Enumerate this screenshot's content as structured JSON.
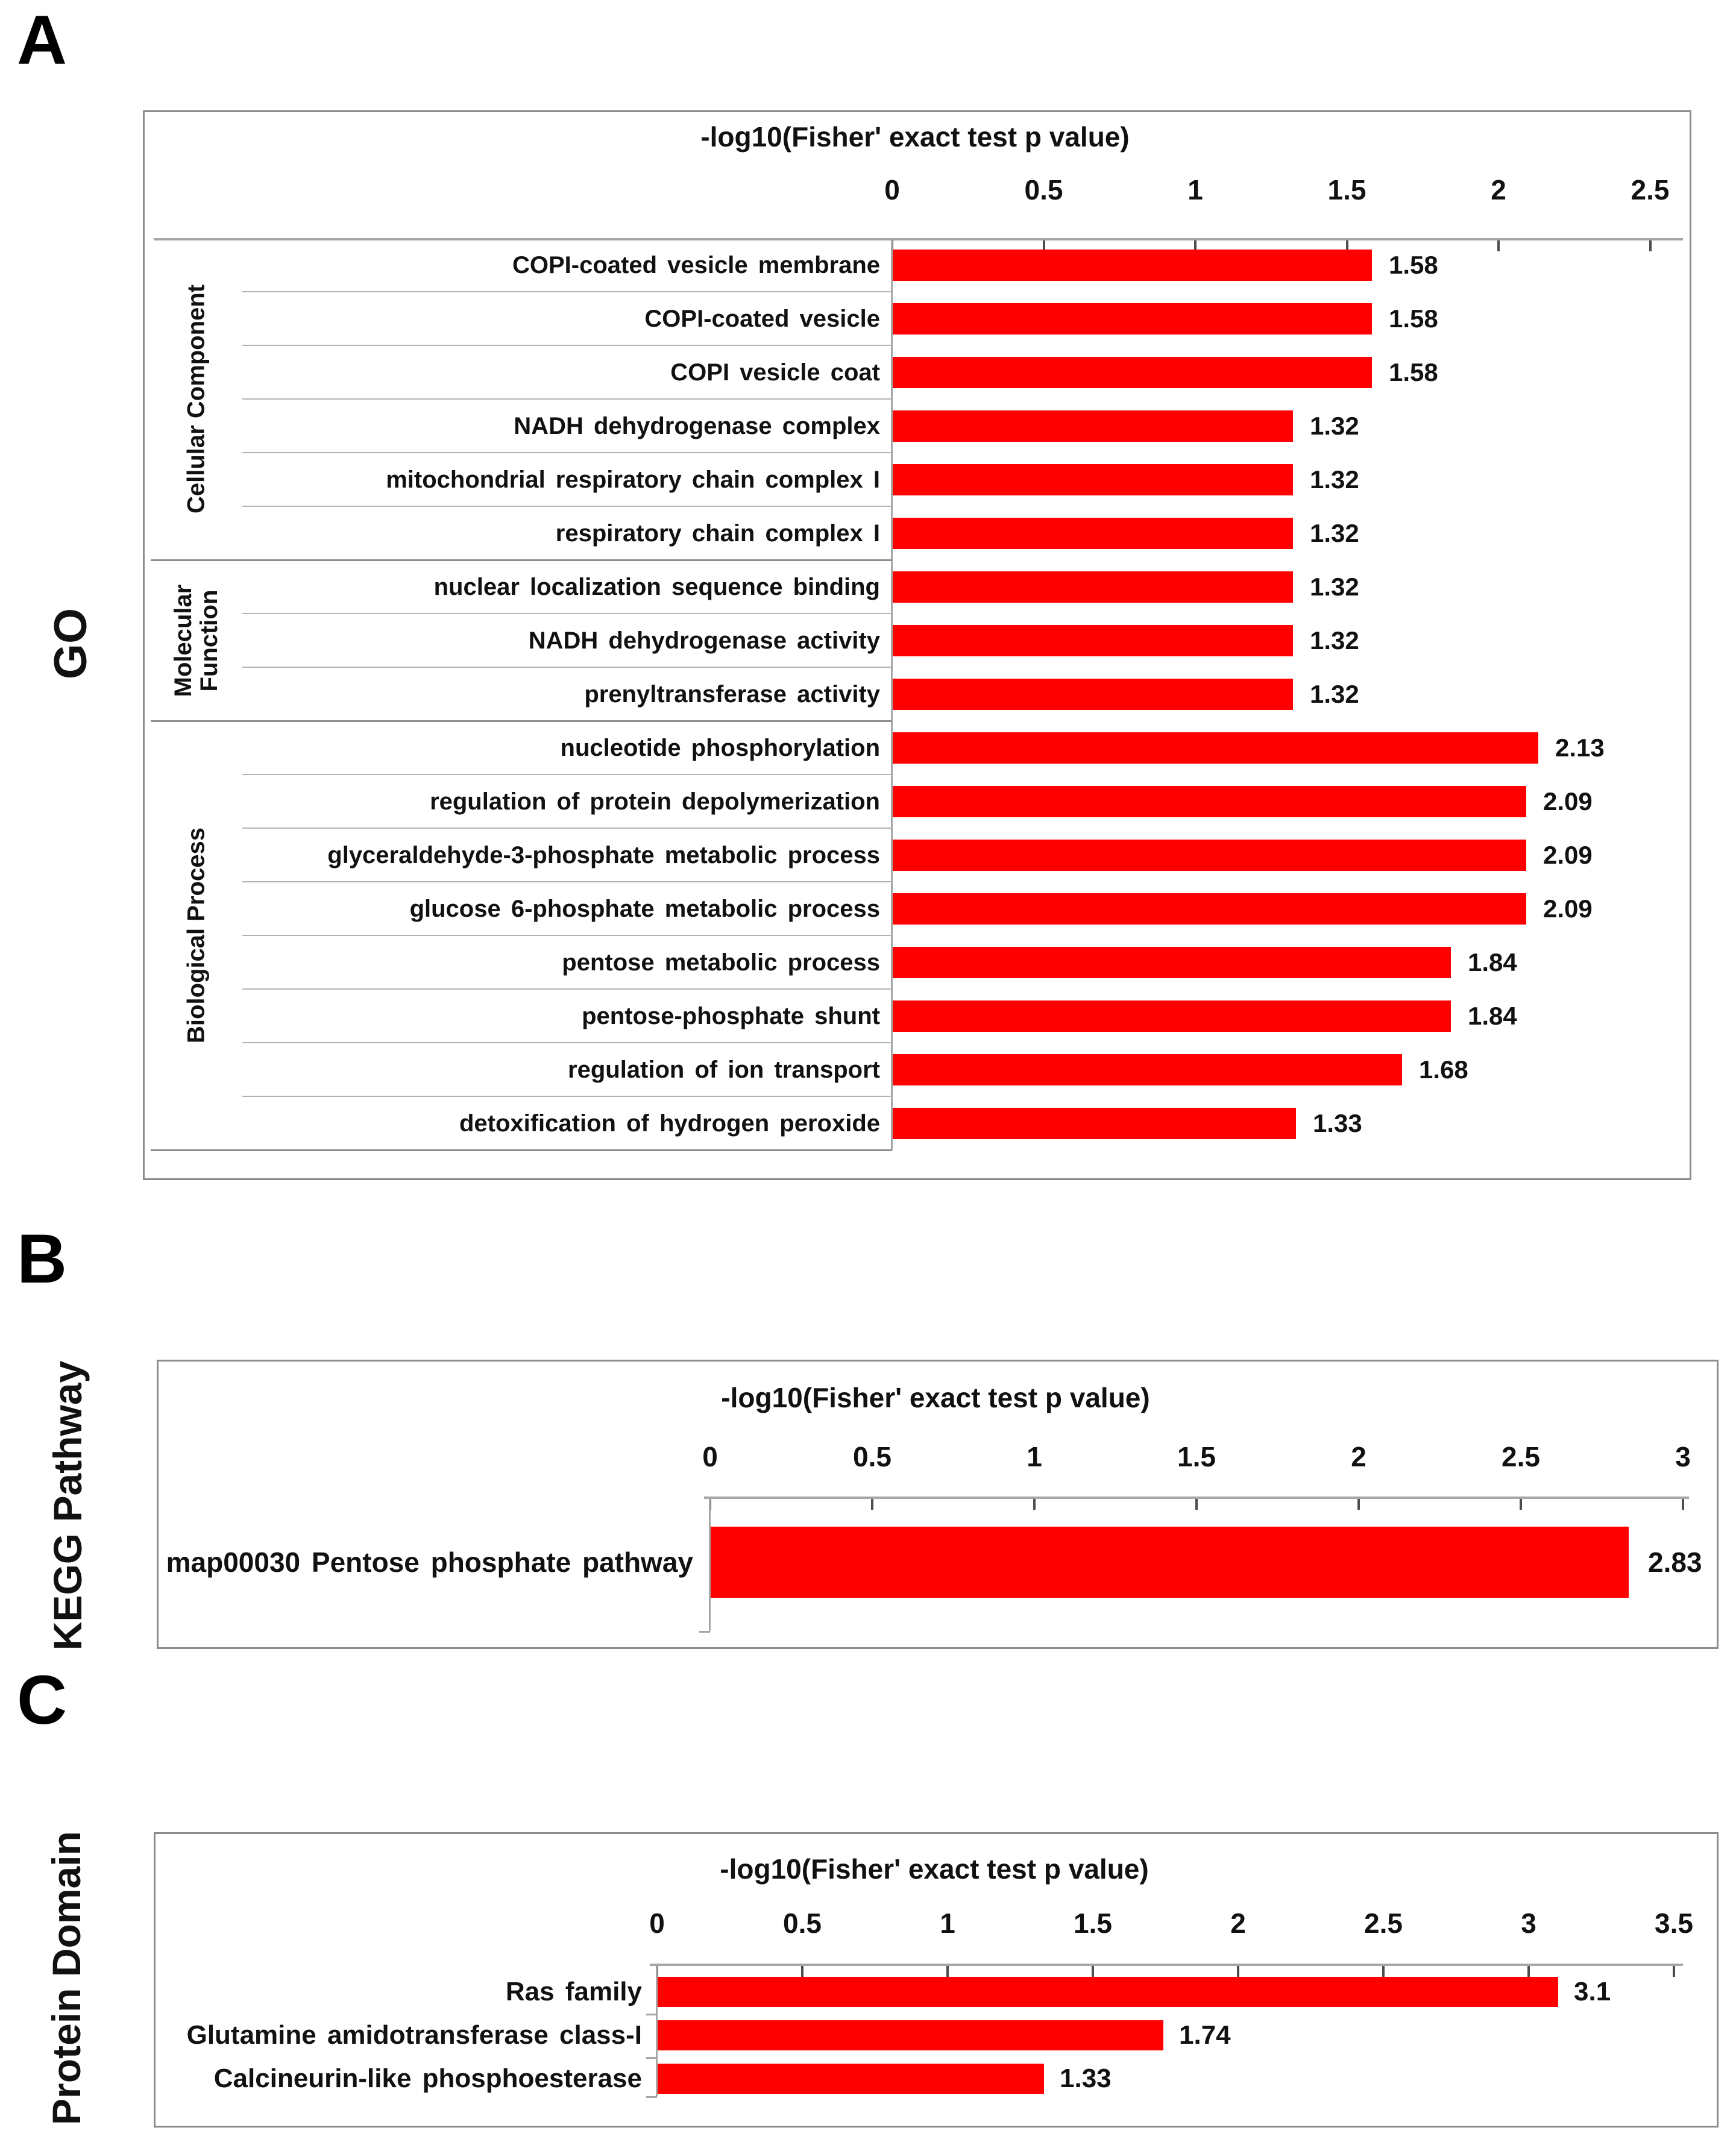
{
  "figure_title": "",
  "colors": {
    "bar": "#ff0000",
    "axis_line": "#a6a6a6",
    "tick_mark": "#4d4d4d",
    "box_border": "#8c8c8c",
    "row_separator": "#b3b3b3",
    "group_separator": "#8c8c8c",
    "text": "#111111",
    "background": "#ffffff"
  },
  "chart_data": [
    {
      "type": "bar",
      "orientation": "horizontal",
      "panel_letter": "A",
      "side_label": "GO",
      "title": "-log10(Fisher' exact test p value)",
      "xlabel": "-log10(Fisher' exact test p value)",
      "xlim": [
        0,
        2.5
      ],
      "xticks": [
        "0",
        "0.5",
        "1",
        "1.5",
        "2",
        "2.5"
      ],
      "grid": false,
      "legend": null,
      "groups": [
        {
          "label": "Cellular Component",
          "rows": 6
        },
        {
          "label": "Molecular Function",
          "rows": 3
        },
        {
          "label": "Biological Process",
          "rows": 8
        }
      ],
      "categories": [
        "COPI-coated vesicle membrane",
        "COPI-coated vesicle",
        "COPI vesicle coat",
        "NADH dehydrogenase complex",
        "mitochondrial respiratory chain complex I",
        "respiratory chain complex I",
        "nuclear localization sequence binding",
        "NADH dehydrogenase activity",
        "prenyltransferase activity",
        "nucleotide phosphorylation",
        "regulation of protein depolymerization",
        "glyceraldehyde-3-phosphate metabolic process",
        "glucose 6-phosphate metabolic process",
        "pentose metabolic process",
        "pentose-phosphate shunt",
        "regulation of ion transport",
        "detoxification of hydrogen peroxide"
      ],
      "values": [
        1.58,
        1.58,
        1.58,
        1.32,
        1.32,
        1.32,
        1.32,
        1.32,
        1.32,
        2.13,
        2.09,
        2.09,
        2.09,
        1.84,
        1.84,
        1.68,
        1.33
      ],
      "value_labels": [
        "1.58",
        "1.58",
        "1.58",
        "1.32",
        "1.32",
        "1.32",
        "1.32",
        "1.32",
        "1.32",
        "2.13",
        "2.09",
        "2.09",
        "2.09",
        "1.84",
        "1.84",
        "1.68",
        "1.33"
      ]
    },
    {
      "type": "bar",
      "orientation": "horizontal",
      "panel_letter": "B",
      "side_label": "KEGG Pathway",
      "title": "-log10(Fisher' exact test p value)",
      "xlabel": "-log10(Fisher' exact test p value)",
      "xlim": [
        0,
        3
      ],
      "xticks": [
        "0",
        "0.5",
        "1",
        "1.5",
        "2",
        "2.5",
        "3"
      ],
      "grid": false,
      "legend": null,
      "groups": null,
      "categories": [
        "map00030 Pentose phosphate pathway"
      ],
      "values": [
        2.83
      ],
      "value_labels": [
        "2.83"
      ]
    },
    {
      "type": "bar",
      "orientation": "horizontal",
      "panel_letter": "C",
      "side_label": "Protein Domain",
      "title": "-log10(Fisher' exact test p value)",
      "xlabel": "-log10(Fisher' exact test p value)",
      "xlim": [
        0,
        3.5
      ],
      "xticks": [
        "0",
        "0.5",
        "1",
        "1.5",
        "2",
        "2.5",
        "3",
        "3.5"
      ],
      "grid": false,
      "legend": null,
      "groups": null,
      "categories": [
        "Ras family",
        "Glutamine amidotransferase class-I",
        "Calcineurin-like phosphoesterase"
      ],
      "values": [
        3.1,
        1.74,
        1.33
      ],
      "value_labels": [
        "3.1",
        "1.74",
        "1.33"
      ]
    }
  ]
}
